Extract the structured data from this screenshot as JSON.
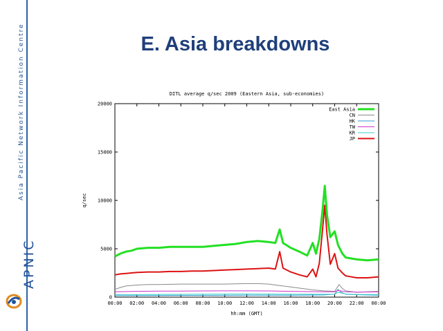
{
  "sidebar": {
    "org_name": "Asia Pacific Network Information Centre",
    "brand": "APNIC",
    "logo_icon": "apnic-swirl-icon"
  },
  "slide": {
    "title": "E. Asia breakdowns"
  },
  "chart_data": {
    "type": "line",
    "title": "DITL average q/sec 2009 (Eastern Asia, sub-economies)",
    "xlabel": "hh:mm (GMT)",
    "ylabel": "q/sec",
    "ylim": [
      0,
      20000
    ],
    "yticks": [
      0,
      5000,
      10000,
      15000,
      20000
    ],
    "xlim": [
      0,
      24
    ],
    "xticks": [
      "00:00",
      "02:00",
      "04:00",
      "06:00",
      "08:00",
      "10:00",
      "12:00",
      "14:00",
      "16:00",
      "18:00",
      "20:00",
      "22:00",
      "00:00"
    ],
    "legend_position": "top-right",
    "grid": false,
    "series": [
      {
        "name": "East Asia",
        "color": "#22e022",
        "width": 3,
        "points": [
          [
            0,
            4200
          ],
          [
            0.5,
            4500
          ],
          [
            1,
            4700
          ],
          [
            1.5,
            4800
          ],
          [
            2,
            5000
          ],
          [
            3,
            5100
          ],
          [
            4,
            5100
          ],
          [
            5,
            5200
          ],
          [
            6,
            5200
          ],
          [
            7,
            5200
          ],
          [
            8,
            5200
          ],
          [
            9,
            5300
          ],
          [
            10,
            5400
          ],
          [
            11,
            5500
          ],
          [
            12,
            5700
          ],
          [
            13,
            5800
          ],
          [
            14,
            5700
          ],
          [
            14.6,
            5600
          ],
          [
            15,
            7000
          ],
          [
            15.3,
            5600
          ],
          [
            16,
            5100
          ],
          [
            16.8,
            4700
          ],
          [
            17.5,
            4300
          ],
          [
            18,
            5600
          ],
          [
            18.3,
            4500
          ],
          [
            18.6,
            6000
          ],
          [
            18.9,
            9000
          ],
          [
            19.1,
            11500
          ],
          [
            19.3,
            8500
          ],
          [
            19.6,
            6200
          ],
          [
            20,
            6800
          ],
          [
            20.3,
            5400
          ],
          [
            20.7,
            4500
          ],
          [
            21,
            4100
          ],
          [
            22,
            3900
          ],
          [
            23,
            3800
          ],
          [
            24,
            3900
          ]
        ]
      },
      {
        "name": "CN",
        "color": "#888888",
        "width": 1,
        "points": [
          [
            0,
            800
          ],
          [
            0.5,
            1000
          ],
          [
            1,
            1150
          ],
          [
            2,
            1250
          ],
          [
            3,
            1300
          ],
          [
            4,
            1300
          ],
          [
            6,
            1350
          ],
          [
            8,
            1350
          ],
          [
            10,
            1350
          ],
          [
            12,
            1400
          ],
          [
            13,
            1400
          ],
          [
            14,
            1350
          ],
          [
            15,
            1200
          ],
          [
            16,
            1050
          ],
          [
            17,
            900
          ],
          [
            18,
            750
          ],
          [
            19,
            650
          ],
          [
            20,
            600
          ],
          [
            20.4,
            1300
          ],
          [
            20.7,
            900
          ],
          [
            21,
            650
          ],
          [
            22,
            500
          ],
          [
            23,
            550
          ],
          [
            24,
            600
          ]
        ]
      },
      {
        "name": "HK",
        "color": "#3399cc",
        "width": 1,
        "points": [
          [
            0,
            150
          ],
          [
            4,
            170
          ],
          [
            8,
            180
          ],
          [
            12,
            200
          ],
          [
            16,
            200
          ],
          [
            19,
            220
          ],
          [
            20,
            300
          ],
          [
            20.3,
            800
          ],
          [
            20.6,
            500
          ],
          [
            21,
            300
          ],
          [
            22,
            250
          ],
          [
            24,
            200
          ]
        ]
      },
      {
        "name": "TW",
        "color": "#cc33cc",
        "width": 1,
        "points": [
          [
            0,
            550
          ],
          [
            2,
            600
          ],
          [
            4,
            620
          ],
          [
            6,
            620
          ],
          [
            8,
            640
          ],
          [
            10,
            650
          ],
          [
            12,
            650
          ],
          [
            14,
            640
          ],
          [
            16,
            600
          ],
          [
            18,
            570
          ],
          [
            19,
            560
          ],
          [
            20,
            550
          ],
          [
            20.3,
            700
          ],
          [
            21,
            560
          ],
          [
            22,
            520
          ],
          [
            24,
            540
          ]
        ]
      },
      {
        "name": "KR",
        "color": "#33cccc",
        "width": 1,
        "points": [
          [
            0,
            250
          ],
          [
            4,
            280
          ],
          [
            8,
            300
          ],
          [
            12,
            320
          ],
          [
            16,
            300
          ],
          [
            19,
            290
          ],
          [
            20,
            300
          ],
          [
            20.3,
            500
          ],
          [
            21,
            320
          ],
          [
            22,
            280
          ],
          [
            24,
            260
          ]
        ]
      },
      {
        "name": "JP",
        "color": "#dd1111",
        "width": 2,
        "points": [
          [
            0,
            2300
          ],
          [
            0.5,
            2400
          ],
          [
            1,
            2450
          ],
          [
            2,
            2550
          ],
          [
            3,
            2600
          ],
          [
            4,
            2600
          ],
          [
            5,
            2650
          ],
          [
            6,
            2650
          ],
          [
            7,
            2700
          ],
          [
            8,
            2700
          ],
          [
            9,
            2750
          ],
          [
            10,
            2800
          ],
          [
            11,
            2850
          ],
          [
            12,
            2900
          ],
          [
            13,
            2950
          ],
          [
            14,
            3000
          ],
          [
            14.6,
            2900
          ],
          [
            15,
            4700
          ],
          [
            15.3,
            3000
          ],
          [
            16,
            2600
          ],
          [
            16.8,
            2300
          ],
          [
            17.5,
            2100
          ],
          [
            18,
            2900
          ],
          [
            18.3,
            2100
          ],
          [
            18.6,
            3500
          ],
          [
            18.9,
            7000
          ],
          [
            19.1,
            9500
          ],
          [
            19.3,
            6500
          ],
          [
            19.6,
            3400
          ],
          [
            20,
            4500
          ],
          [
            20.3,
            3000
          ],
          [
            20.7,
            2500
          ],
          [
            21,
            2200
          ],
          [
            22,
            2000
          ],
          [
            23,
            2000
          ],
          [
            24,
            2100
          ]
        ]
      }
    ]
  }
}
